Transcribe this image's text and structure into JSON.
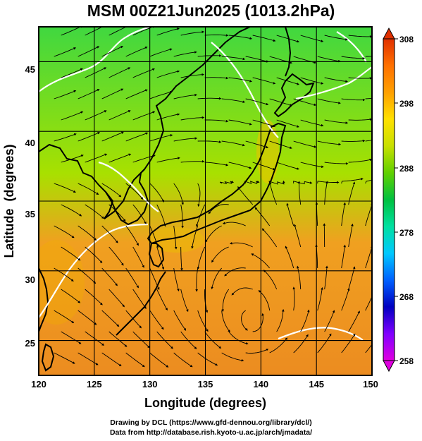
{
  "title": "MSM 00Z21Jun2025 (1013.2hPa)",
  "x_axis": {
    "label": "Longitude (degrees)",
    "ticks": [
      "120",
      "125",
      "130",
      "135",
      "140",
      "145",
      "150"
    ],
    "range": [
      120,
      150
    ]
  },
  "y_axis": {
    "label": "Latitude  (degrees)",
    "ticks": [
      "25",
      "30",
      "35",
      "40",
      "45"
    ],
    "range": [
      22.5,
      47.5
    ]
  },
  "colorbar": {
    "ticks": [
      "308",
      "298",
      "288",
      "278",
      "268",
      "258"
    ],
    "range": [
      258,
      308
    ],
    "colors": [
      "#e000e0",
      "#8000ff",
      "#0000c0",
      "#0060ff",
      "#00c8ff",
      "#00e0a0",
      "#00c040",
      "#60d000",
      "#c8e000",
      "#ffe000",
      "#ffa000",
      "#ff7000",
      "#e03000"
    ]
  },
  "map": {
    "grid": true,
    "field_colors": {
      "north": "#40d840",
      "middle": "#a8e000",
      "south": "#f0a020",
      "deep_south": "#ec8c20"
    },
    "coastline_color": "#000000",
    "contour_color": "#ffffff",
    "streamline_color": "#000000"
  },
  "credits": {
    "line1": "Drawing by DCL (https://www.gfd-dennou.org/library/dcl/)",
    "line2": "Data from http://database.rish.kyoto-u.ac.jp/arch/jmadata/"
  }
}
